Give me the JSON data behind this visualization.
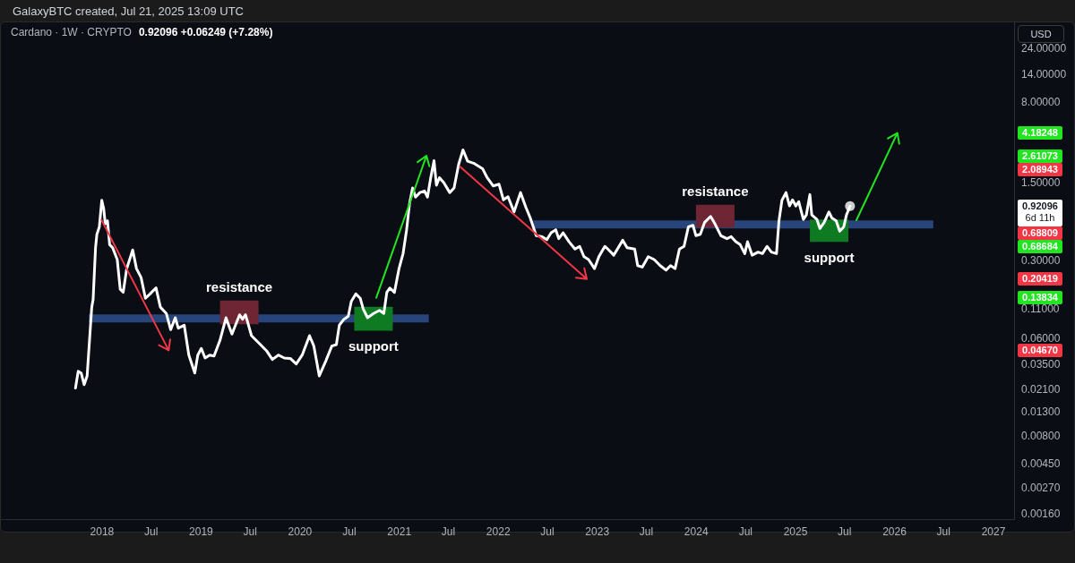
{
  "chart_data": {
    "type": "line",
    "title": "Cardano · 1W · CRYPTO",
    "subtitle": "0.92096 +0.06249 (+7.28%)",
    "annotations": [
      "GalaxyBTC created, Jul 21, 2025 13:09 UTC",
      "USD",
      "6d 11h",
      "0.68809",
      "0.68684",
      {
        "text": "resistance",
        "x": "2019-05-22",
        "y": 0.131
      },
      {
        "text": "support",
        "x": "2020-09-28",
        "y": 0.07
      },
      {
        "text": "resistance",
        "x": "2024-03-11",
        "y": 0.95
      },
      {
        "text": "support",
        "x": "2025-05-05",
        "y": 0.44
      }
    ],
    "log": "y",
    "xlim": [
      "2016-12-24",
      "2027-03-18"
    ],
    "xticks": [
      {
        "value": "2018-01-01",
        "label": "2018"
      },
      {
        "value": "2018-07-01",
        "label": "Jul"
      },
      {
        "value": "2019-01-01",
        "label": "2019"
      },
      {
        "value": "2019-07-01",
        "label": "Jul"
      },
      {
        "value": "2020-01-01",
        "label": "2020"
      },
      {
        "value": "2020-07-01",
        "label": "Jul"
      },
      {
        "value": "2021-01-01",
        "label": "2021"
      },
      {
        "value": "2021-07-01",
        "label": "Jul"
      },
      {
        "value": "2022-01-01",
        "label": "2022"
      },
      {
        "value": "2022-07-01",
        "label": "Jul"
      },
      {
        "value": "2023-01-01",
        "label": "2023"
      },
      {
        "value": "2023-07-01",
        "label": "Jul"
      },
      {
        "value": "2024-01-01",
        "label": "2024"
      },
      {
        "value": "2024-07-01",
        "label": "Jul"
      },
      {
        "value": "2025-01-01",
        "label": "2025"
      },
      {
        "value": "2025-07-01",
        "label": "Jul"
      },
      {
        "value": "2026-01-01",
        "label": "2026"
      },
      {
        "value": "2026-07-01",
        "label": "Jul"
      },
      {
        "value": "2027-01-01",
        "label": "2027"
      }
    ],
    "ylim": [
      0.00142,
      42
    ],
    "yticks": [
      {
        "value": 24,
        "label": "24.00000"
      },
      {
        "value": 14,
        "label": "14.00000"
      },
      {
        "value": 8,
        "label": "8.00000"
      },
      4.18248,
      2.61073,
      2.08943,
      {
        "value": 1.5,
        "label": "1.50000"
      },
      0.92096,
      {
        "value": 0.3,
        "label": "0.30000"
      },
      0.20419,
      0.13834,
      {
        "value": 0.11,
        "label": "0.11000"
      },
      {
        "value": 0.06,
        "label": "0.06000"
      },
      {
        "value": 0.0467,
        "label": "0.04670"
      },
      {
        "value": 0.035,
        "label": "0.03500"
      },
      {
        "value": 0.021,
        "label": "0.02100"
      },
      {
        "value": 0.013,
        "label": "0.01300"
      },
      {
        "value": 0.008,
        "label": "0.00800"
      },
      {
        "value": 0.0045,
        "label": "0.00450"
      },
      {
        "value": 0.0027,
        "label": "0.00270"
      },
      {
        "value": 0.0016,
        "label": "0.00160"
      }
    ],
    "series": [
      {
        "color": "#ffffff",
        "x": [
          "2017-09-25",
          "2017-10-05",
          "2017-10-16",
          "2017-10-27",
          "2017-11-07",
          "2017-11-24",
          "2017-11-29",
          "2017-12-08",
          "2017-12-13",
          "2017-12-22",
          "2017-12-31",
          "2018-01-07",
          "2018-01-13",
          "2018-01-21",
          "2018-01-29",
          "2018-02-09",
          "2018-02-26",
          "2018-03-09",
          "2018-03-20",
          "2018-04-02",
          "2018-04-24",
          "2018-05-08",
          "2018-05-25",
          "2018-06-10",
          "2018-06-27",
          "2018-07-19",
          "2018-08-04",
          "2018-08-26",
          "2018-09-11",
          "2018-09-28",
          "2018-10-09",
          "2018-10-31",
          "2018-11-17",
          "2018-12-09",
          "2018-12-20",
          "2019-01-02",
          "2019-01-16",
          "2019-02-02",
          "2019-02-18",
          "2019-03-12",
          "2019-04-03",
          "2019-04-25",
          "2019-05-23",
          "2019-06-03",
          "2019-06-14",
          "2019-07-06",
          "2019-08-08",
          "2019-08-30",
          "2019-09-21",
          "2019-10-13",
          "2019-11-04",
          "2019-11-26",
          "2019-12-18",
          "2020-01-09",
          "2020-02-05",
          "2020-02-21",
          "2020-03-12",
          "2020-04-05",
          "2020-04-27",
          "2020-05-14",
          "2020-05-25",
          "2020-06-11",
          "2020-06-27",
          "2020-07-08",
          "2020-07-25",
          "2020-08-10",
          "2020-08-21",
          "2020-09-06",
          "2020-09-28",
          "2020-10-20",
          "2020-11-05",
          "2020-11-16",
          "2020-11-27",
          "2020-12-14",
          "2020-12-31",
          "2021-01-15",
          "2021-01-28",
          "2021-02-08",
          "2021-02-19",
          "2021-03-02",
          "2021-03-18",
          "2021-04-04",
          "2021-04-15",
          "2021-04-26",
          "2021-05-09",
          "2021-05-18",
          "2021-05-29",
          "2021-06-14",
          "2021-07-06",
          "2021-07-22",
          "2021-08-08",
          "2021-08-24",
          "2021-09-10",
          "2021-10-02",
          "2021-11-04",
          "2021-11-21",
          "2021-12-13",
          "2022-01-04",
          "2022-01-20",
          "2022-02-06",
          "2022-02-28",
          "2022-03-24",
          "2022-04-13",
          "2022-04-29",
          "2022-05-21",
          "2022-06-12",
          "2022-06-29",
          "2022-07-15",
          "2022-08-01",
          "2022-08-12",
          "2022-08-28",
          "2022-09-19",
          "2022-10-11",
          "2022-10-28",
          "2022-11-13",
          "2022-11-30",
          "2022-12-22",
          "2023-01-07",
          "2023-01-29",
          "2023-02-09",
          "2023-03-03",
          "2023-04-05",
          "2023-04-21",
          "2023-05-19",
          "2023-05-30",
          "2023-06-16",
          "2023-07-08",
          "2023-07-30",
          "2023-08-21",
          "2023-09-12",
          "2023-09-28",
          "2023-10-15",
          "2023-10-31",
          "2023-11-17",
          "2023-12-03",
          "2023-12-20",
          "2023-12-31",
          "2024-01-16",
          "2024-02-01",
          "2024-02-23",
          "2024-03-10",
          "2024-04-01",
          "2024-04-23",
          "2024-05-09",
          "2024-05-26",
          "2024-06-11",
          "2024-06-28",
          "2024-07-08",
          "2024-07-25",
          "2024-08-16",
          "2024-09-01",
          "2024-09-18",
          "2024-10-04",
          "2024-10-23",
          "2024-11-01",
          "2024-11-12",
          "2024-11-27",
          "2024-12-10",
          "2024-12-21",
          "2025-01-02",
          "2025-01-13",
          "2025-01-30",
          "2025-02-10",
          "2025-02-23",
          "2025-03-02",
          "2025-03-21",
          "2025-04-01",
          "2025-04-17",
          "2025-05-04",
          "2025-05-15",
          "2025-05-31",
          "2025-06-13",
          "2025-06-28",
          "2025-07-08",
          "2025-07-21"
        ],
        "values": [
          0.0214,
          0.0302,
          0.0292,
          0.0229,
          0.0275,
          0.114,
          0.133,
          0.39,
          0.515,
          0.6,
          1.04,
          0.875,
          0.639,
          0.68,
          0.415,
          0.39,
          0.305,
          0.165,
          0.155,
          0.253,
          0.372,
          0.253,
          0.21,
          0.137,
          0.15,
          0.17,
          0.114,
          0.1,
          0.0715,
          0.0915,
          0.0737,
          0.0785,
          0.0423,
          0.0292,
          0.0423,
          0.0485,
          0.0398,
          0.0423,
          0.0415,
          0.0576,
          0.0915,
          0.0652,
          0.0973,
          0.0887,
          0.0973,
          0.0632,
          0.0525,
          0.0464,
          0.0386,
          0.0423,
          0.0398,
          0.0395,
          0.0352,
          0.0423,
          0.0632,
          0.0509,
          0.0275,
          0.0374,
          0.0509,
          0.0525,
          0.0785,
          0.0887,
          0.0945,
          0.1285,
          0.15,
          0.137,
          0.11,
          0.0915,
          0.1,
          0.1067,
          0.1,
          0.1546,
          0.1695,
          0.1546,
          0.253,
          0.345,
          0.565,
          0.98,
          1.34,
          1.11,
          1.22,
          1.26,
          1.11,
          1.61,
          2.36,
          1.42,
          1.66,
          1.5,
          1.22,
          1.34,
          2.19,
          2.95,
          2.33,
          2.24,
          2.0,
          1.66,
          1.4,
          1.45,
          1.05,
          1.12,
          0.817,
          1.22,
          0.896,
          0.722,
          0.5,
          0.49,
          0.46,
          0.531,
          0.565,
          0.47,
          0.531,
          0.441,
          0.379,
          0.401,
          0.324,
          0.305,
          0.253,
          0.324,
          0.401,
          0.379,
          0.334,
          0.455,
          0.39,
          0.379,
          0.269,
          0.261,
          0.324,
          0.305,
          0.269,
          0.245,
          0.269,
          0.253,
          0.379,
          0.401,
          0.6,
          0.62,
          0.5,
          0.515,
          0.66,
          0.745,
          0.639,
          0.5,
          0.47,
          0.49,
          0.441,
          0.415,
          0.345,
          0.441,
          0.334,
          0.356,
          0.345,
          0.401,
          0.356,
          0.345,
          0.68,
          1.04,
          1.22,
          0.925,
          1.05,
          0.925,
          1.01,
          0.7,
          0.768,
          1.17,
          0.768,
          0.7,
          0.58,
          0.66,
          0.817,
          0.722,
          0.68,
          0.548,
          0.6,
          0.768,
          0.92096
        ]
      },
      {
        "color": "#27457a",
        "x": [
          "2017-11-13",
          "2021-04-20"
        ],
        "values": [
          0.0901,
          0.0901
        ]
      },
      {
        "color": "#27457a",
        "x": [
          "2022-05-10",
          "2026-05-24"
        ],
        "values": [
          0.632,
          0.632
        ]
      },
      {
        "type": "scatter",
        "color": "#ffffff",
        "marker": "circle",
        "x": [
          "2025-07-21"
        ],
        "values": [
          0.92096
        ]
      },
      {
        "type": "bar",
        "colors": [
          "#6e2635",
          "#0e7a22",
          "#6e2635",
          "#0e7a22"
        ],
        "x": [
          "2019-05-22",
          "2020-09-28",
          "2024-03-11",
          "2025-05-05"
        ],
        "base": [
          0.08,
          0.07,
          0.59,
          0.44
        ],
        "values": [
          0.051,
          0.045,
          0.36,
          0.26
        ]
      }
    ]
  }
}
